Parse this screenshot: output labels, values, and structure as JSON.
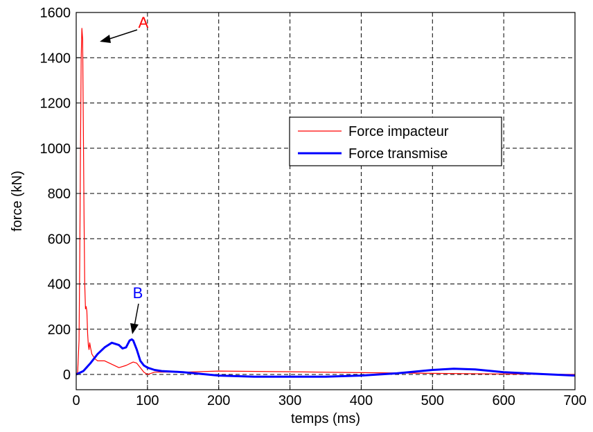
{
  "chart_data": {
    "type": "line",
    "xlabel": "temps (ms)",
    "ylabel": "force (kN)",
    "xlim": [
      0,
      700
    ],
    "ylim": [
      -50,
      1600
    ],
    "xticks": [
      0,
      100,
      200,
      300,
      400,
      500,
      600,
      700
    ],
    "yticks": [
      0,
      200,
      400,
      600,
      800,
      1000,
      1200,
      1400,
      1600
    ],
    "grid": true,
    "grid_style": "dashed",
    "legend_position": "center-right",
    "series": [
      {
        "name": "Force impacteur",
        "color": "#ff0000",
        "x": [
          0,
          2,
          4,
          5,
          6,
          7,
          8,
          9,
          10,
          11,
          12,
          13,
          14,
          15,
          16,
          17,
          18,
          19,
          20,
          22,
          24,
          26,
          28,
          30,
          35,
          40,
          50,
          60,
          70,
          80,
          85,
          90,
          95,
          100,
          105,
          110,
          120,
          150,
          200,
          300,
          400,
          500,
          600,
          700
        ],
        "y": [
          0,
          10,
          150,
          500,
          1000,
          1400,
          1530,
          1480,
          1100,
          700,
          400,
          290,
          300,
          280,
          180,
          130,
          110,
          140,
          120,
          90,
          80,
          70,
          65,
          60,
          60,
          60,
          45,
          30,
          40,
          55,
          50,
          30,
          10,
          0,
          5,
          10,
          10,
          10,
          15,
          12,
          8,
          5,
          2,
          0
        ]
      },
      {
        "name": "Force transmise",
        "color": "#0000ff",
        "x": [
          0,
          10,
          20,
          30,
          40,
          50,
          60,
          65,
          70,
          75,
          78,
          80,
          85,
          90,
          95,
          100,
          110,
          120,
          150,
          200,
          250,
          300,
          350,
          400,
          450,
          500,
          530,
          560,
          600,
          650,
          700
        ],
        "y": [
          0,
          15,
          50,
          90,
          120,
          140,
          130,
          115,
          120,
          150,
          155,
          150,
          110,
          60,
          40,
          30,
          20,
          15,
          10,
          -5,
          -10,
          -10,
          -10,
          -5,
          5,
          20,
          25,
          22,
          10,
          2,
          -5
        ]
      }
    ],
    "annotations": [
      {
        "label": "A",
        "color": "#ff0000",
        "x": 8,
        "y": 1530
      },
      {
        "label": "B",
        "color": "#0000ff",
        "x": 78,
        "y": 155
      }
    ]
  }
}
